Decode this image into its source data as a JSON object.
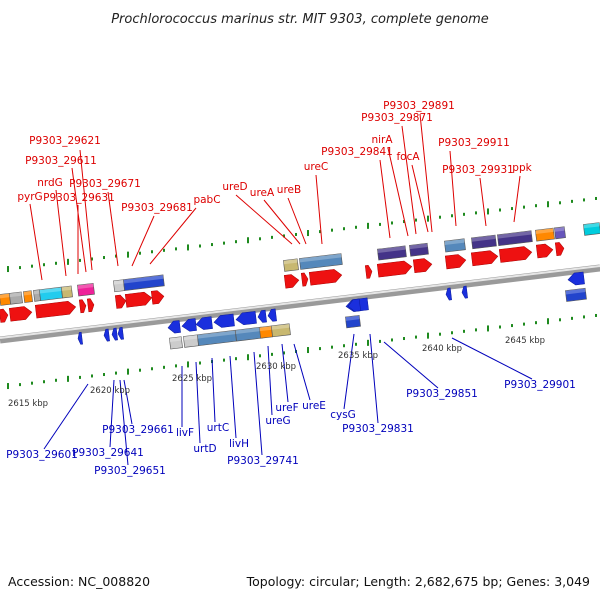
{
  "title": "Prochlorococcus marinus str. MIT 9303, complete genome",
  "accession": "Accession: NC_008820",
  "summary": "Topology: circular; Length: 2,682,675 bp; Genes: 3,049",
  "colors": {
    "forward_label": "#dd0000",
    "reverse_label": "#0000bb",
    "forward_gene": "#ee1111",
    "reverse_gene": "#1a2fdd",
    "backbone": "#8a8a8a",
    "tick": "#1e8a1e"
  },
  "scale_labels": [
    "2615 kbp",
    "2620 kbp",
    "2625 kbp",
    "2630 kbp",
    "2635 kbp",
    "2640 kbp",
    "2645 kbp"
  ],
  "forward_genes": [
    "P9303_29621",
    "P9303_29611",
    "nrdG",
    "pyrG",
    "P9303_29671",
    "P9303_29631",
    "P9303_29681",
    "pabC",
    "ureD",
    "ureA",
    "ureB",
    "ureC",
    "P9303_29841",
    "nirA",
    "P9303_29871",
    "focA",
    "P9303_29891",
    "P9303_29911",
    "P9303_29931",
    "ppk"
  ],
  "reverse_genes": [
    "P9303_29601",
    "P9303_29641",
    "P9303_29651",
    "P9303_29661",
    "livF",
    "urtD",
    "urtC",
    "livH",
    "P9303_29741",
    "ureG",
    "ureF",
    "ureE",
    "cysG",
    "P9303_29831",
    "P9303_29851",
    "P9303_29901"
  ]
}
